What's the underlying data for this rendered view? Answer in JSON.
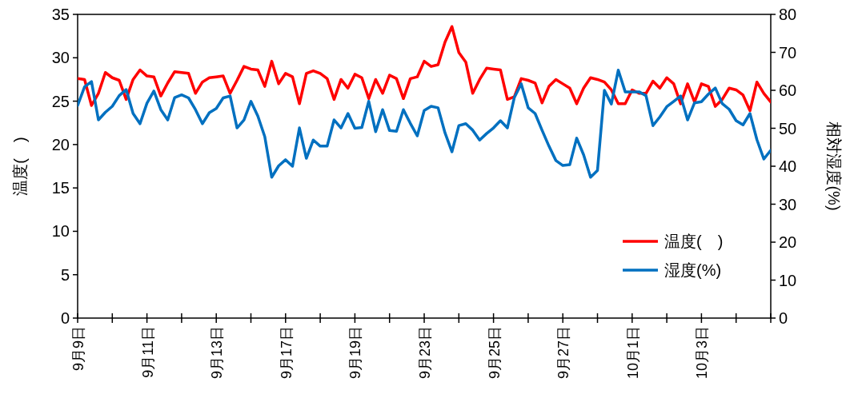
{
  "chart_data": {
    "type": "line",
    "ylabel": "温度(　)",
    "y2label": "相対湿度(%)",
    "legend": "bottom right",
    "grid": false,
    "marker": "none",
    "line_style": "solid",
    "ylim": [
      0,
      35
    ],
    "yticks": [
      0,
      5,
      10,
      15,
      20,
      25,
      30,
      35
    ],
    "y2lim": [
      0,
      80
    ],
    "y2ticks": [
      0,
      10,
      20,
      30,
      40,
      50,
      60,
      70,
      80
    ],
    "categories": [
      "9月9日",
      null,
      null,
      null,
      null,
      null,
      null,
      null,
      null,
      null,
      "9月11日",
      null,
      null,
      null,
      null,
      null,
      null,
      null,
      null,
      null,
      "9月13日",
      null,
      null,
      null,
      null,
      null,
      null,
      null,
      null,
      null,
      "9月17日",
      null,
      null,
      null,
      null,
      null,
      null,
      null,
      null,
      null,
      "9月19日",
      null,
      null,
      null,
      null,
      null,
      null,
      null,
      null,
      null,
      "9月23日",
      null,
      null,
      null,
      null,
      null,
      null,
      null,
      null,
      null,
      "9月25日",
      null,
      null,
      null,
      null,
      null,
      null,
      null,
      null,
      null,
      "9月27日",
      null,
      null,
      null,
      null,
      null,
      null,
      null,
      null,
      null,
      "10月1日",
      null,
      null,
      null,
      null,
      null,
      null,
      null,
      null,
      null,
      "10月3日",
      null,
      null,
      null,
      null,
      null,
      null,
      null,
      null,
      null,
      null
    ],
    "series": [
      {
        "name": "温度(　)",
        "color": "#ff0000",
        "values": [
          27.6,
          27.5,
          24.5,
          25.9,
          28.3,
          27.7,
          27.4,
          25.2,
          27.5,
          28.6,
          27.9,
          27.8,
          25.6,
          27.1,
          28.4,
          28.3,
          28.2,
          25.9,
          27.2,
          27.7,
          27.8,
          27.9,
          25.9,
          27.4,
          29.0,
          28.7,
          28.6,
          26.7,
          29.6,
          27.0,
          28.2,
          27.8,
          24.7,
          28.2,
          28.5,
          28.2,
          27.6,
          25.2,
          27.5,
          26.5,
          28.1,
          27.7,
          25.3,
          27.5,
          25.9,
          28.0,
          27.6,
          25.3,
          27.6,
          27.8,
          29.6,
          29.0,
          29.2,
          31.8,
          33.6,
          30.6,
          29.5,
          25.9,
          27.5,
          28.8,
          28.7,
          28.6,
          25.2,
          25.5,
          27.6,
          27.4,
          27.1,
          24.8,
          26.7,
          27.5,
          27.0,
          26.5,
          24.7,
          26.5,
          27.7,
          27.5,
          27.2,
          26.3,
          24.7,
          24.7,
          26.3,
          25.9,
          25.9,
          27.3,
          26.5,
          27.7,
          27.0,
          24.7,
          27.0,
          24.9,
          27.0,
          26.7,
          24.4,
          25.2,
          26.5,
          26.3,
          25.7,
          23.9,
          27.2,
          25.9,
          24.9
        ]
      },
      {
        "name": "湿度(%)",
        "color": "#0070c0",
        "axis": "y2",
        "values": [
          56.0,
          60.9,
          62.3,
          52.2,
          54.2,
          55.8,
          58.6,
          60.2,
          53.9,
          51.2,
          56.6,
          59.8,
          54.9,
          52.2,
          58.1,
          58.8,
          58.0,
          54.9,
          51.2,
          54.1,
          55.2,
          58.0,
          58.5,
          50.1,
          52.2,
          57.1,
          53.2,
          47.8,
          37.1,
          40.1,
          41.7,
          40.0,
          50.1,
          42.1,
          46.9,
          45.3,
          45.3,
          52.2,
          50.1,
          53.9,
          50.0,
          50.2,
          57.1,
          49.1,
          54.9,
          49.4,
          49.2,
          54.9,
          51.3,
          48.0,
          54.7,
          55.8,
          55.4,
          48.8,
          43.8,
          50.7,
          51.2,
          49.5,
          46.9,
          48.6,
          50.1,
          52.0,
          50.1,
          58.1,
          61.7,
          55.4,
          53.9,
          49.5,
          45.3,
          41.5,
          40.2,
          40.4,
          47.4,
          43.0,
          37.1,
          38.9,
          60.0,
          56.4,
          65.3,
          59.6,
          59.6,
          59.6,
          58.6,
          50.7,
          53.0,
          55.7,
          57.1,
          58.5,
          52.2,
          56.7,
          57.0,
          59.0,
          60.6,
          56.5,
          55.0,
          52.0,
          50.9,
          53.9,
          47.0,
          41.9,
          44.2
        ]
      }
    ]
  }
}
